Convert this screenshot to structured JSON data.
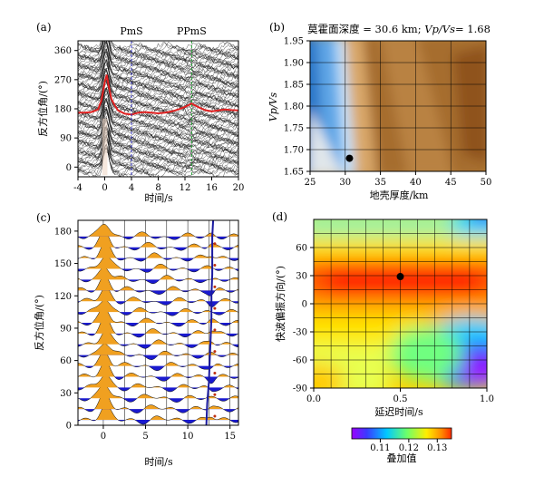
{
  "figure": {
    "panels": [
      "(a)",
      "(b)",
      "(c)",
      "(d)"
    ]
  },
  "chart_data": [
    {
      "id": "a",
      "type": "line",
      "title": "",
      "xlabel": "时间/s",
      "ylabel": "反方位角/(°)",
      "xlim": [
        -4,
        20
      ],
      "ylim": [
        -30,
        390
      ],
      "xticks": [
        -4,
        0,
        4,
        8,
        12,
        16,
        20
      ],
      "yticks": [
        0,
        90,
        180,
        270,
        360
      ],
      "annotations": [
        {
          "label": "PmS",
          "x": 4
        },
        {
          "label": "PPmS",
          "x": 13
        }
      ],
      "series": [
        {
          "name": "mean",
          "color": "#e02020",
          "x": [
            -4,
            -3,
            -2,
            -1,
            -0.5,
            0,
            0.3,
            0.6,
            1,
            1.5,
            2,
            3,
            4,
            5,
            6,
            7,
            8,
            9,
            10,
            11,
            12,
            13,
            14,
            15,
            16,
            17,
            18,
            19,
            20
          ],
          "y": [
            168,
            168,
            170,
            178,
            205,
            262,
            285,
            250,
            210,
            190,
            175,
            165,
            162,
            168,
            170,
            168,
            166,
            168,
            172,
            178,
            186,
            196,
            185,
            176,
            172,
            175,
            178,
            176,
            175
          ]
        }
      ]
    },
    {
      "id": "b",
      "type": "heatmap",
      "title": "莫霍面深度 = 30.6 km; ",
      "title_ratio": "Vp/Vs= ",
      "title_value": "1.68",
      "xlabel": "地壳厚度/km",
      "ylabel": "Vp/Vs",
      "xlim": [
        25,
        50
      ],
      "ylim": [
        1.65,
        1.95
      ],
      "xticks": [
        25,
        30,
        35,
        40,
        45,
        50
      ],
      "yticks": [
        1.65,
        1.7,
        1.75,
        1.8,
        1.85,
        1.9,
        1.95
      ],
      "best": {
        "x": 30.6,
        "y": 1.68
      }
    },
    {
      "id": "c",
      "type": "line",
      "title": "",
      "xlabel": "时间/s",
      "ylabel": "反方位角/(°)",
      "xlim": [
        -3,
        16
      ],
      "ylim": [
        0,
        190
      ],
      "xticks": [
        0,
        5,
        10,
        15
      ],
      "yticks": [
        0,
        30,
        60,
        90,
        120,
        150,
        180
      ],
      "trace_baselines": [
        5,
        15,
        25,
        35,
        45,
        55,
        65,
        75,
        85,
        95,
        105,
        115,
        125,
        135,
        145,
        155,
        165,
        175
      ],
      "fit_line": {
        "x": [
          12.2,
          12.3,
          12.5,
          12.6,
          12.7,
          12.8,
          12.8,
          12.9,
          12.9,
          12.9,
          12.9,
          13.0
        ],
        "y": [
          0,
          20,
          40,
          60,
          80,
          100,
          120,
          140,
          150,
          160,
          175,
          190
        ]
      }
    },
    {
      "id": "d",
      "type": "heatmap",
      "title": "",
      "xlabel": "延迟时间/s",
      "ylabel": "快波偏振方向/(°)",
      "xlim": [
        0,
        1
      ],
      "ylim": [
        -90,
        90
      ],
      "xticks": [
        "0.0",
        "0.5",
        "1.0"
      ],
      "yticks": [
        -90,
        -60,
        -30,
        0,
        30,
        60
      ],
      "best": {
        "x": 0.5,
        "y": 29
      },
      "colorbar": {
        "label": "叠加值",
        "range": [
          0.1,
          0.135
        ],
        "ticks": [
          "0.11",
          "0.12",
          "0.13"
        ]
      }
    }
  ]
}
